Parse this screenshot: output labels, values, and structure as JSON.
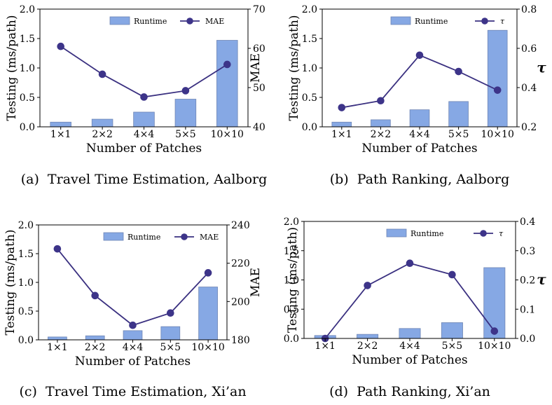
{
  "chart_data": [
    {
      "type": "bar+line",
      "caption": "(a)  Travel Time Estimation, Aalborg",
      "xlabel": "Number of Patches",
      "categories": [
        "1×1",
        "2×2",
        "4×4",
        "5×5",
        "10×10"
      ],
      "ylabel_left": "Testing (ms/path)",
      "ylim_left": [
        0,
        2.0
      ],
      "yticks_left": [
        "0.0",
        "0.5",
        "1.0",
        "1.5",
        "2.0"
      ],
      "ylabel_right": "MAE",
      "ylim_right": [
        40,
        70
      ],
      "yticks_right": [
        "40",
        "50",
        "60",
        "70"
      ],
      "series": [
        {
          "name": "Runtime",
          "kind": "bar",
          "axis": "left",
          "values": [
            0.08,
            0.13,
            0.25,
            0.47,
            1.47
          ]
        },
        {
          "name": "MAE",
          "kind": "line",
          "axis": "right",
          "values": [
            60.5,
            53.4,
            47.6,
            49.2,
            55.9
          ]
        }
      ]
    },
    {
      "type": "bar+line",
      "caption": "(b)  Path Ranking, Aalborg",
      "xlabel": "Number of Patches",
      "categories": [
        "1×1",
        "2×2",
        "4×4",
        "5×5",
        "10×10"
      ],
      "ylabel_left": "Testing (ms/path)",
      "ylim_left": [
        0,
        2.0
      ],
      "yticks_left": [
        "0.0",
        "0.5",
        "1.0",
        "1.5",
        "2.0"
      ],
      "ylabel_right": "τ",
      "ylim_right": [
        0.2,
        0.8
      ],
      "yticks_right": [
        "0.2",
        "0.4",
        "0.6",
        "0.8"
      ],
      "series": [
        {
          "name": "Runtime",
          "kind": "bar",
          "axis": "left",
          "values": [
            0.08,
            0.12,
            0.29,
            0.43,
            1.64
          ]
        },
        {
          "name": "τ",
          "kind": "line",
          "axis": "right",
          "values": [
            0.298,
            0.333,
            0.565,
            0.482,
            0.387
          ]
        }
      ]
    },
    {
      "type": "bar+line",
      "caption": "(c)  Travel Time Estimation, Xi’an",
      "xlabel": "Number of Patches",
      "categories": [
        "1×1",
        "2×2",
        "4×4",
        "5×5",
        "10×10"
      ],
      "ylabel_left": "Testing (ms/path)",
      "ylim_left": [
        0,
        2.0
      ],
      "yticks_left": [
        "0.0",
        "0.5",
        "1.0",
        "1.5",
        "2.0"
      ],
      "ylabel_right": "MAE",
      "ylim_right": [
        180,
        240
      ],
      "yticks_right": [
        "180",
        "200",
        "220",
        "240"
      ],
      "series": [
        {
          "name": "Runtime",
          "kind": "bar",
          "axis": "left",
          "values": [
            0.05,
            0.07,
            0.16,
            0.23,
            0.92
          ]
        },
        {
          "name": "MAE",
          "kind": "line",
          "axis": "right",
          "values": [
            227.5,
            203.1,
            187.6,
            194.0,
            215.0
          ]
        }
      ]
    },
    {
      "type": "bar+line",
      "caption": "(d)  Path Ranking, Xi’an",
      "xlabel": "Number of Patches",
      "categories": [
        "1×1",
        "2×2",
        "4×4",
        "5×5",
        "10×10"
      ],
      "ylabel_left": "Testing (ms/path)",
      "ylim_left": [
        0,
        2.0
      ],
      "yticks_left": [
        "0.0",
        "0.5",
        "1.0",
        "1.5",
        "2.0"
      ],
      "ylabel_right": "τ",
      "ylim_right": [
        0,
        0.4
      ],
      "yticks_right": [
        "0.0",
        "0.1",
        "0.2",
        "0.3",
        "0.4"
      ],
      "series": [
        {
          "name": "Runtime",
          "kind": "bar",
          "axis": "left",
          "values": [
            0.05,
            0.07,
            0.17,
            0.27,
            1.21
          ]
        },
        {
          "name": "τ",
          "kind": "line",
          "axis": "right",
          "values": [
            0.0,
            0.181,
            0.257,
            0.218,
            0.025
          ]
        }
      ]
    }
  ],
  "colors": {
    "bar_fill": "#86A8E4",
    "bar_edge": "#6F86B5",
    "line": "#3A3080",
    "marker": "#3D3489",
    "axis": "#000000"
  }
}
